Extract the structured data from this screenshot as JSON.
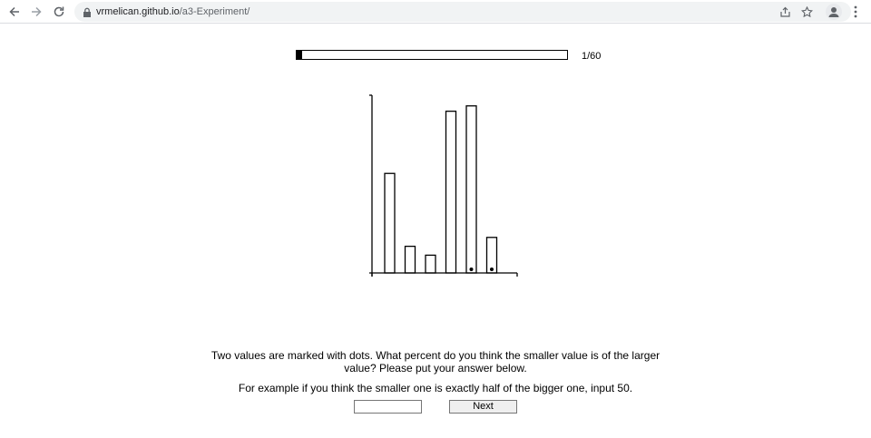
{
  "browser": {
    "url_host": "vrmelican.github.io",
    "url_path": "/a3-Experiment/",
    "icons": {
      "back": "back-arrow-icon",
      "forward": "forward-arrow-icon",
      "reload": "reload-icon",
      "lock": "lock-icon",
      "share": "share-icon",
      "bookmark": "star-icon",
      "profile": "avatar-icon",
      "menu": "kebab-menu-icon"
    }
  },
  "progress": {
    "label": "1/60",
    "current": 1,
    "total": 60
  },
  "chart_data": {
    "type": "bar",
    "categories": [
      "",
      "",
      "",
      "",
      "",
      ""
    ],
    "values": [
      56,
      15,
      10,
      91,
      94,
      20
    ],
    "marked": [
      false,
      false,
      false,
      false,
      true,
      true
    ],
    "ylim": [
      0,
      100
    ],
    "title": "",
    "xlabel": "",
    "ylabel": "",
    "grid": false,
    "bar_fill": "#ffffff",
    "bar_stroke": "#000000"
  },
  "instructions": {
    "line1": "Two values are marked with dots. What percent do you think the smaller value is of the larger value? Please put your answer below.",
    "line2": "For example if you think the smaller one is exactly half of the bigger one, input 50."
  },
  "answer": {
    "value": "",
    "placeholder": ""
  },
  "next_button": {
    "label": "Next"
  }
}
